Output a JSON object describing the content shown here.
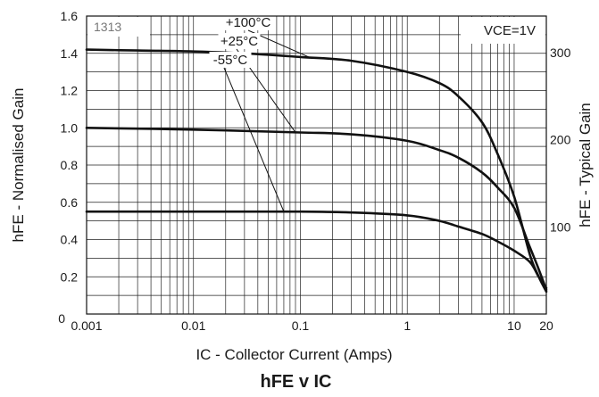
{
  "chart_data": {
    "type": "line",
    "title": "hFE v IC",
    "xlabel": "IC - Collector Current (Amps)",
    "ylabel": "hFE - Normalised Gain",
    "y2label": "hFE - Typical Gain",
    "x_scale": "log",
    "xlim": [
      0.001,
      20
    ],
    "ylim": [
      0,
      1.6
    ],
    "y2lim": [
      0,
      342
    ],
    "grid": true,
    "x_ticks": [
      {
        "value": 0.001,
        "label": "0.001"
      },
      {
        "value": 0.01,
        "label": "0.01"
      },
      {
        "value": 0.1,
        "label": "0.1"
      },
      {
        "value": 1,
        "label": "1"
      },
      {
        "value": 10,
        "label": "10"
      },
      {
        "value": 20,
        "label": "20"
      }
    ],
    "y_ticks": [
      {
        "value": 0,
        "label": "0"
      },
      {
        "value": 0.2,
        "label": "0.2"
      },
      {
        "value": 0.4,
        "label": "0.4"
      },
      {
        "value": 0.6,
        "label": "0.6"
      },
      {
        "value": 0.8,
        "label": "0.8"
      },
      {
        "value": 1.0,
        "label": "1.0"
      },
      {
        "value": 1.2,
        "label": "1.2"
      },
      {
        "value": 1.4,
        "label": "1.4"
      },
      {
        "value": 1.6,
        "label": "1.6"
      }
    ],
    "y2_ticks": [
      {
        "value": 100,
        "label": "100"
      },
      {
        "value": 200,
        "label": "200"
      },
      {
        "value": 300,
        "label": "300"
      }
    ],
    "annotations": {
      "part_code": "1313",
      "condition": "VCE=1V"
    },
    "series": [
      {
        "name": "+100°C",
        "x": [
          0.001,
          0.003,
          0.01,
          0.03,
          0.1,
          0.3,
          1,
          2,
          3,
          5,
          7,
          10,
          14,
          17,
          20
        ],
        "y": [
          1.42,
          1.415,
          1.41,
          1.4,
          1.38,
          1.36,
          1.3,
          1.24,
          1.17,
          1.03,
          0.86,
          0.63,
          0.32,
          0.2,
          0.12
        ]
      },
      {
        "name": "+25°C",
        "x": [
          0.001,
          0.01,
          0.1,
          0.3,
          1,
          2,
          3,
          5,
          7,
          10,
          14,
          17,
          20
        ],
        "y": [
          1.0,
          0.99,
          0.975,
          0.965,
          0.93,
          0.88,
          0.84,
          0.76,
          0.68,
          0.57,
          0.36,
          0.24,
          0.13
        ]
      },
      {
        "name": "-55°C",
        "x": [
          0.001,
          0.01,
          0.1,
          0.3,
          1,
          2,
          3,
          5,
          7,
          10,
          14,
          17,
          20
        ],
        "y": [
          0.55,
          0.55,
          0.55,
          0.545,
          0.53,
          0.5,
          0.47,
          0.43,
          0.39,
          0.34,
          0.28,
          0.2,
          0.14
        ]
      }
    ],
    "labels": [
      {
        "series": "+100°C",
        "text": "+100°C",
        "points_to": {
          "x": 0.12,
          "y": 1.38
        }
      },
      {
        "series": "+25°C",
        "text": "+25°C",
        "points_to": {
          "x": 0.09,
          "y": 0.975
        }
      },
      {
        "series": "-55°C",
        "text": "-55°C",
        "points_to": {
          "x": 0.07,
          "y": 0.55
        }
      }
    ]
  }
}
